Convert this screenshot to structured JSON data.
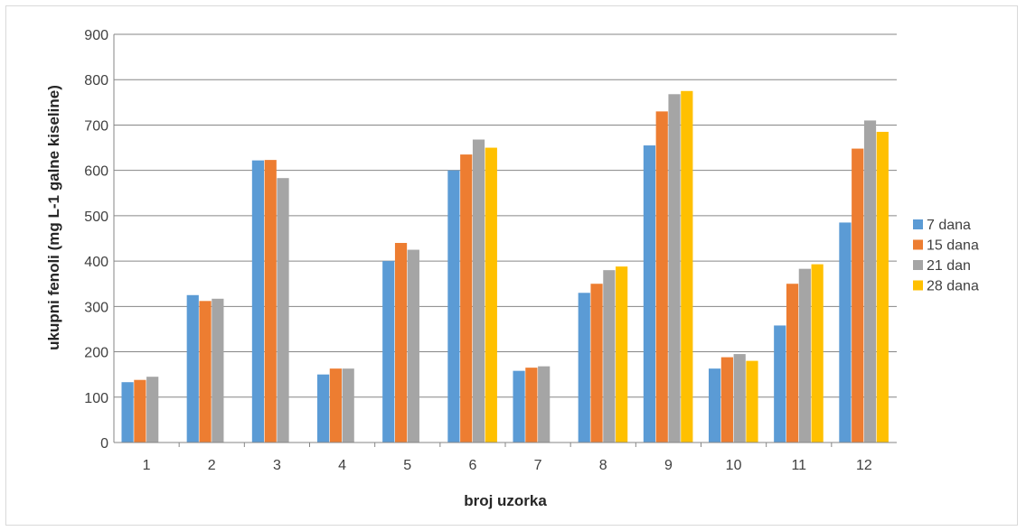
{
  "chart_data": {
    "type": "bar",
    "title": "",
    "xlabel": "broj uzorka",
    "ylabel": "ukupni fenoli (mg L-1  galne kiseline)",
    "ylim": [
      0,
      900
    ],
    "yticks": [
      0,
      100,
      200,
      300,
      400,
      500,
      600,
      700,
      800,
      900
    ],
    "grid": true,
    "legend_position": "right",
    "categories": [
      "1",
      "2",
      "3",
      "4",
      "5",
      "6",
      "7",
      "8",
      "9",
      "10",
      "11",
      "12"
    ],
    "series": [
      {
        "name": "7 dana",
        "color": "#5b9bd5",
        "values": [
          133,
          325,
          622,
          150,
          400,
          600,
          158,
          330,
          655,
          163,
          258,
          485
        ]
      },
      {
        "name": "15 dana",
        "color": "#ed7d31",
        "values": [
          138,
          312,
          623,
          163,
          440,
          635,
          165,
          350,
          730,
          188,
          350,
          648
        ]
      },
      {
        "name": "21 dan",
        "color": "#a5a5a5",
        "values": [
          145,
          317,
          583,
          163,
          425,
          668,
          168,
          380,
          768,
          195,
          383,
          710
        ]
      },
      {
        "name": "28 dana",
        "color": "#ffc000",
        "values": [
          null,
          null,
          null,
          null,
          null,
          650,
          null,
          388,
          775,
          180,
          393,
          685
        ]
      }
    ]
  }
}
